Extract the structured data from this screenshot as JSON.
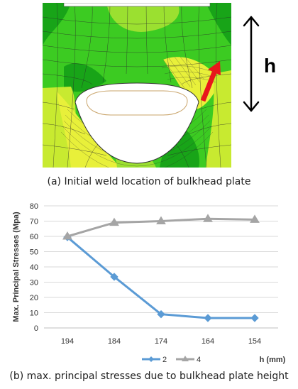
{
  "panel_a": {
    "caption": "(a) Initial weld location of bulkhead plate",
    "dimension_label": "h",
    "colors": {
      "contour_green": "#3ccb22",
      "contour_dark_green": "#18a418",
      "contour_light_green": "#9be030",
      "contour_yellow": "#e8f03a",
      "contour_yellow_green": "#c8ea30",
      "mesh_line": "#2a2a2a",
      "arrow": "#e8161c"
    }
  },
  "panel_b": {
    "caption": "(b) max. principal stresses due to bulkhead plate height"
  },
  "chart_data": {
    "type": "line",
    "categories": [
      "194",
      "184",
      "174",
      "164",
      "154"
    ],
    "series": [
      {
        "name": "2",
        "values": [
          59.5,
          33.5,
          9,
          6.5,
          6.5
        ],
        "color": "#5b9bd5",
        "marker": "diamond"
      },
      {
        "name": "4",
        "values": [
          60,
          69,
          70,
          71.5,
          71
        ],
        "color": "#a5a5a5",
        "marker": "triangle"
      }
    ],
    "xlabel": "h (mm)",
    "ylabel": "Max. Principal Stresses (Mpa)",
    "ylim": [
      0,
      80
    ],
    "yticks": [
      0,
      10,
      20,
      30,
      40,
      50,
      60,
      70,
      80
    ],
    "grid": true,
    "legend": "bottom"
  }
}
